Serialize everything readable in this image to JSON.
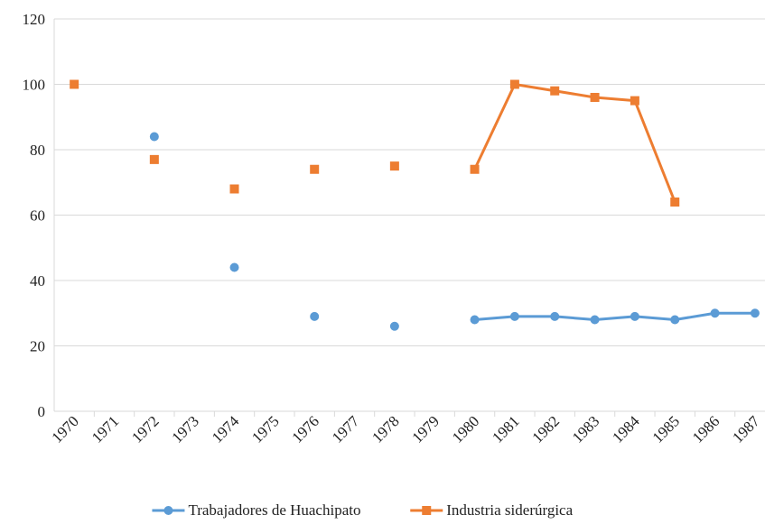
{
  "chart_data": {
    "type": "line",
    "categories": [
      "1970",
      "1971",
      "1972",
      "1973",
      "1974",
      "1975",
      "1976",
      "1977",
      "1978",
      "1979",
      "1980",
      "1981",
      "1982",
      "1983",
      "1984",
      "1985",
      "1986",
      "1987"
    ],
    "series": [
      {
        "name": "Trabajadores de Huachipato",
        "color": "#5b9bd5",
        "marker": "circle",
        "values": [
          null,
          null,
          84,
          null,
          44,
          null,
          29,
          null,
          26,
          null,
          28,
          29,
          29,
          28,
          29,
          28,
          30,
          30
        ]
      },
      {
        "name": "Industria siderúrgica",
        "color": "#ed7d31",
        "marker": "square",
        "values": [
          100,
          null,
          77,
          null,
          68,
          null,
          74,
          null,
          75,
          null,
          74,
          100,
          98,
          96,
          95,
          64,
          null,
          null
        ]
      }
    ],
    "ylim": [
      0,
      120
    ],
    "yticks": [
      0,
      20,
      40,
      60,
      80,
      100,
      120
    ],
    "grid": true,
    "legend": "bottom"
  }
}
